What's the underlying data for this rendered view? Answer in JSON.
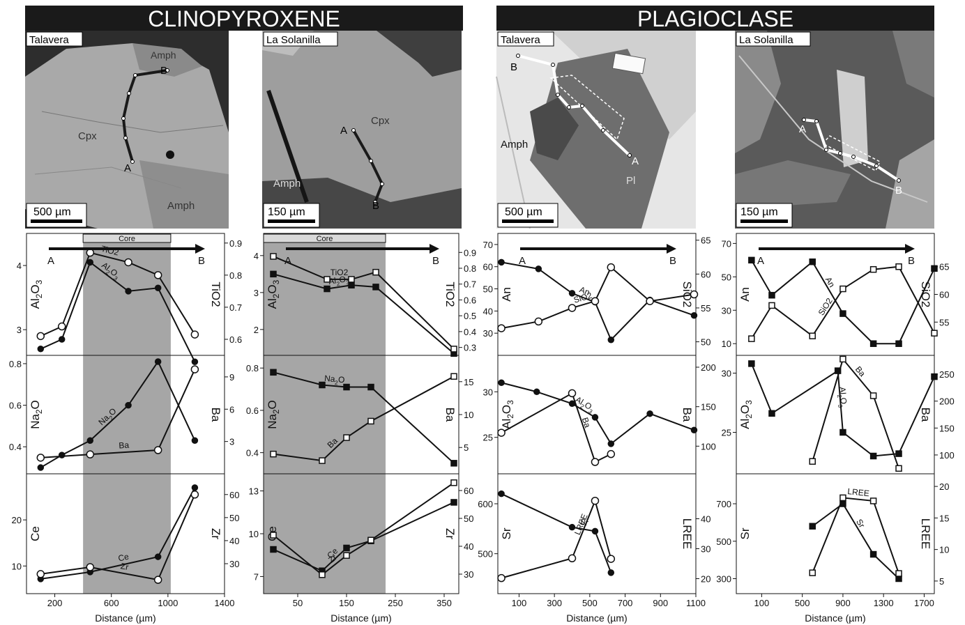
{
  "headers": {
    "clinopyroxene": "CLINOPYROXENE",
    "plagioclase": "PLAGIOCLASE"
  },
  "colors": {
    "header_bg": "#1a1a1a",
    "header_text": "#ffffff",
    "core_shade": "#a6a6a6",
    "ink": "#111111"
  },
  "images": [
    {
      "location": "Talavera",
      "scale": "500 µm",
      "mineral_labels": [
        "Cpx",
        "Amph",
        "Amph"
      ],
      "endpoints": [
        "A",
        "B"
      ]
    },
    {
      "location": "La Solanilla",
      "scale": "150 µm",
      "mineral_labels": [
        "Cpx",
        "Amph"
      ],
      "endpoints": [
        "A",
        "B"
      ]
    },
    {
      "location": "Talavera",
      "scale": "500 µm",
      "mineral_labels": [
        "Amph",
        "Pl"
      ],
      "endpoints": [
        "A",
        "B"
      ]
    },
    {
      "location": "La Solanilla",
      "scale": "150 µm",
      "mineral_labels": [],
      "endpoints": [
        "A",
        "B"
      ]
    }
  ],
  "chart_data": [
    {
      "column": "Clinopyroxene Talavera",
      "xlabel": "Distance (µm)",
      "xticks": [
        "200",
        "600",
        "1000",
        "1400"
      ],
      "xlim": [
        0,
        1400
      ],
      "core_label": "Core",
      "core_range": [
        400,
        1020
      ],
      "panels": [
        {
          "left_axis": "Al2O3",
          "right_axis": "TiO2",
          "ylim_left": [
            2.6,
            4.5
          ],
          "ylim_right": [
            0.55,
            0.93
          ],
          "left_ticks": [
            "3",
            "4"
          ],
          "right_ticks": [
            "0.6",
            "0.7",
            "0.8",
            "0.9"
          ],
          "series": [
            {
              "name": "Al2O3",
              "axis": "left",
              "marker": "filled-circle",
              "x": [
                100,
                250,
                450,
                720,
                930,
                1190
              ],
              "y": [
                2.7,
                2.85,
                4.05,
                3.6,
                3.65,
                2.5
              ]
            },
            {
              "name": "TiO2",
              "axis": "right",
              "marker": "open-circle",
              "x": [
                100,
                250,
                450,
                720,
                930,
                1190
              ],
              "y": [
                0.61,
                0.64,
                0.87,
                0.84,
                0.8,
                0.615
              ]
            }
          ],
          "arrow": {
            "from": "A",
            "to": "B"
          }
        },
        {
          "left_axis": "Na2O",
          "right_axis": "Ba",
          "ylim_left": [
            0.27,
            0.84
          ],
          "ylim_right": [
            0,
            11
          ],
          "left_ticks": [
            "0.4",
            "0.6",
            "0.8"
          ],
          "right_ticks": [
            "3",
            "6",
            "9"
          ],
          "series": [
            {
              "name": "Na2O",
              "axis": "left",
              "marker": "filled-circle",
              "x": [
                100,
                250,
                450,
                720,
                930,
                1190
              ],
              "y": [
                0.3,
                0.36,
                0.43,
                0.6,
                0.81,
                0.43
              ]
            },
            {
              "name": "Ba",
              "axis": "right",
              "marker": "open-circle",
              "x": [
                100,
                450,
                930,
                1190
              ],
              "y": [
                1.5,
                1.8,
                2.2,
                9.7
              ]
            }
          ]
        },
        {
          "left_axis": "Ce",
          "right_axis": "Zr",
          "ylim_left": [
            4,
            30
          ],
          "ylim_right": [
            17,
            69
          ],
          "left_ticks": [
            "10",
            "20"
          ],
          "right_ticks": [
            "30",
            "40",
            "50",
            "60"
          ],
          "series": [
            {
              "name": "Ce",
              "axis": "left",
              "marker": "filled-circle",
              "x": [
                100,
                450,
                930,
                1190
              ],
              "y": [
                7.2,
                8.7,
                12.0,
                27.0
              ]
            },
            {
              "name": "Zr",
              "axis": "right",
              "marker": "open-circle",
              "x": [
                100,
                450,
                930,
                1190
              ],
              "y": [
                25.5,
                28.5,
                23.0,
                60.0
              ]
            }
          ]
        }
      ]
    },
    {
      "column": "Clinopyroxene La Solanilla",
      "xlabel": "Distance (µm)",
      "xticks": [
        "50",
        "150",
        "250",
        "350"
      ],
      "xlim": [
        -20,
        380
      ],
      "core_label": "Core",
      "core_range": [
        -20,
        230
      ],
      "panels": [
        {
          "left_axis": "Al2O3",
          "right_axis": "TiO2",
          "ylim_left": [
            1.3,
            4.6
          ],
          "ylim_right": [
            0.25,
            1.02
          ],
          "left_ticks": [
            "2",
            "3",
            "4"
          ],
          "right_ticks": [
            "0.3",
            "0.4",
            "0.5",
            "0.6",
            "0.7",
            "0.8",
            "0.9"
          ],
          "series": [
            {
              "name": "Al2O3",
              "axis": "left",
              "marker": "filled-square",
              "x": [
                0,
                110,
                160,
                210,
                370
              ],
              "y": [
                3.5,
                3.1,
                3.2,
                3.15,
                1.35
              ]
            },
            {
              "name": "TiO2",
              "axis": "right",
              "marker": "open-square",
              "x": [
                0,
                110,
                160,
                210,
                370
              ],
              "y": [
                0.875,
                0.73,
                0.73,
                0.775,
                0.29
              ]
            }
          ],
          "arrow": {
            "from": "A",
            "to": "B"
          }
        },
        {
          "left_axis": "Na2O",
          "right_axis": "Ba",
          "ylim_left": [
            0.3,
            0.86
          ],
          "ylim_right": [
            1,
            19
          ],
          "left_ticks": [
            "0.4",
            "0.6",
            "0.8"
          ],
          "right_ticks": [
            "5",
            "10",
            "15"
          ],
          "series": [
            {
              "name": "Na2O",
              "axis": "left",
              "marker": "filled-square",
              "x": [
                0,
                100,
                150,
                200,
                370
              ],
              "y": [
                0.78,
                0.72,
                0.71,
                0.71,
                0.35
              ]
            },
            {
              "name": "Ba",
              "axis": "right",
              "marker": "open-square",
              "x": [
                0,
                100,
                150,
                200,
                370
              ],
              "y": [
                4.0,
                3.0,
                6.5,
                9.0,
                15.8
              ]
            }
          ]
        },
        {
          "left_axis": "Ce",
          "right_axis": "Zr",
          "ylim_left": [
            5.8,
            14.2
          ],
          "ylim_right": [
            23,
            66
          ],
          "left_ticks": [
            "7",
            "10",
            "13"
          ],
          "right_ticks": [
            "30",
            "40",
            "50",
            "60"
          ],
          "series": [
            {
              "name": "Ce",
              "axis": "left",
              "marker": "filled-square",
              "x": [
                0,
                100,
                150,
                200,
                370
              ],
              "y": [
                8.9,
                7.4,
                9.0,
                9.5,
                12.2
              ]
            },
            {
              "name": "Zr",
              "axis": "right",
              "marker": "open-square",
              "x": [
                0,
                100,
                150,
                200,
                370
              ],
              "y": [
                44.0,
                29.8,
                36.7,
                42.2,
                62.8
              ]
            }
          ]
        }
      ]
    },
    {
      "column": "Plagioclase Talavera",
      "xlabel": "Distance (µm)",
      "xticks": [
        "100",
        "300",
        "500",
        "700",
        "900",
        "1100"
      ],
      "xlim": [
        -20,
        1100
      ],
      "core_label": "",
      "core_range": [],
      "panels": [
        {
          "left_axis": "An",
          "right_axis": "SiO2",
          "ylim_left": [
            20,
            75
          ],
          "ylim_right": [
            48,
            66
          ],
          "left_ticks": [
            "30",
            "40",
            "50",
            "60",
            "70"
          ],
          "right_ticks": [
            "50",
            "55",
            "60",
            "65"
          ],
          "series": [
            {
              "name": "An",
              "axis": "left",
              "marker": "filled-circle",
              "x": [
                0,
                210,
                400,
                530,
                620,
                840,
                1090
              ],
              "y": [
                62,
                59,
                48,
                44,
                27,
                45,
                38
              ]
            },
            {
              "name": "SiO2",
              "axis": "right",
              "marker": "open-circle",
              "x": [
                0,
                210,
                400,
                530,
                620,
                840,
                1090
              ],
              "y": [
                52,
                53,
                55,
                56,
                61,
                56,
                57
              ]
            }
          ],
          "arrow": {
            "from": "A",
            "to": "B"
          }
        },
        {
          "left_axis": "Al2O3",
          "right_axis": "Ba",
          "ylim_left": [
            21,
            34
          ],
          "ylim_right": [
            65,
            215
          ],
          "left_ticks": [
            "25",
            "30"
          ],
          "right_ticks": [
            "100",
            "150",
            "200"
          ],
          "series": [
            {
              "name": "Al2O3",
              "axis": "left",
              "marker": "filled-circle",
              "x": [
                0,
                200,
                400,
                530,
                620,
                840,
                1090
              ],
              "y": [
                31,
                30,
                28.7,
                27.2,
                24.3,
                27.6,
                25.8
              ]
            },
            {
              "name": "Ba",
              "axis": "right",
              "marker": "open-circle",
              "x": [
                0,
                400,
                530,
                620
              ],
              "y": [
                117,
                167,
                80,
                90
              ]
            }
          ]
        },
        {
          "left_axis": "Sr",
          "right_axis": "LREE",
          "ylim_left": [
            420,
            660
          ],
          "ylim_right": [
            15,
            55
          ],
          "left_ticks": [
            "500",
            "600"
          ],
          "right_ticks": [
            "20",
            "30",
            "40"
          ],
          "series": [
            {
              "name": "Sr",
              "axis": "left",
              "marker": "filled-circle",
              "x": [
                0,
                400,
                530,
                620
              ],
              "y": [
                620,
                553,
                545,
                462
              ]
            },
            {
              "name": "LREE",
              "axis": "right",
              "marker": "open-circle",
              "x": [
                0,
                400,
                530,
                620
              ],
              "y": [
                20.2,
                26.8,
                46.0,
                26.6
              ]
            }
          ]
        }
      ]
    },
    {
      "column": "Plagioclase La Solanilla",
      "xlabel": "Distance (µm)",
      "xticks": [
        "100",
        "500",
        "900",
        "1300",
        "1700"
      ],
      "xlim": [
        -150,
        1800
      ],
      "core_label": "",
      "core_range": [],
      "panels": [
        {
          "left_axis": "An",
          "right_axis": "SiO2",
          "ylim_left": [
            3,
            76
          ],
          "ylim_right": [
            49,
            71
          ],
          "left_ticks": [
            "10",
            "30",
            "50",
            "70"
          ],
          "right_ticks": [
            "55",
            "60",
            "65"
          ],
          "series": [
            {
              "name": "An",
              "axis": "left",
              "marker": "filled-square",
              "x": [
                0,
                200,
                600,
                900,
                1200,
                1450,
                1800
              ],
              "y": [
                60,
                39,
                59,
                28,
                10,
                10,
                55
              ]
            },
            {
              "name": "SiO2",
              "axis": "right",
              "marker": "open-square",
              "x": [
                0,
                200,
                600,
                900,
                1200,
                1450,
                1800
              ],
              "y": [
                52,
                58,
                52.5,
                61,
                64.5,
                65,
                53
              ]
            }
          ],
          "arrow": {
            "from": "A",
            "to": "B"
          }
        },
        {
          "left_axis": "Al2O3",
          "right_axis": "Ba",
          "ylim_left": [
            21.5,
            31.5
          ],
          "ylim_right": [
            65,
            285
          ],
          "left_ticks": [
            "25",
            "30"
          ],
          "right_ticks": [
            "100",
            "150",
            "200",
            "250"
          ],
          "series": [
            {
              "name": "Al2O3",
              "axis": "left",
              "marker": "filled-square",
              "x": [
                0,
                200,
                850,
                900,
                1200,
                1450,
                1800
              ],
              "y": [
                30.8,
                26.6,
                30.2,
                25.0,
                23.0,
                23.2,
                29.7
              ]
            },
            {
              "name": "Ba",
              "axis": "right",
              "marker": "open-square",
              "x": [
                600,
                900,
                1200,
                1450
              ],
              "y": [
                88,
                278,
                210,
                75
              ]
            }
          ]
        },
        {
          "left_axis": "Sr",
          "right_axis": "LREE",
          "ylim_left": [
            220,
            860
          ],
          "ylim_right": [
            3,
            22
          ],
          "left_ticks": [
            "300",
            "500",
            "700"
          ],
          "right_ticks": [
            "5",
            "10",
            "15",
            "20"
          ],
          "series": [
            {
              "name": "Sr",
              "axis": "left",
              "marker": "filled-square",
              "x": [
                600,
                900,
                1200,
                1450
              ],
              "y": [
                580,
                700,
                430,
                300
              ]
            },
            {
              "name": "LREE",
              "axis": "right",
              "marker": "open-square",
              "x": [
                600,
                900,
                1200,
                1450
              ],
              "y": [
                6.3,
                18.2,
                17.7,
                6.2
              ]
            }
          ]
        }
      ]
    }
  ]
}
